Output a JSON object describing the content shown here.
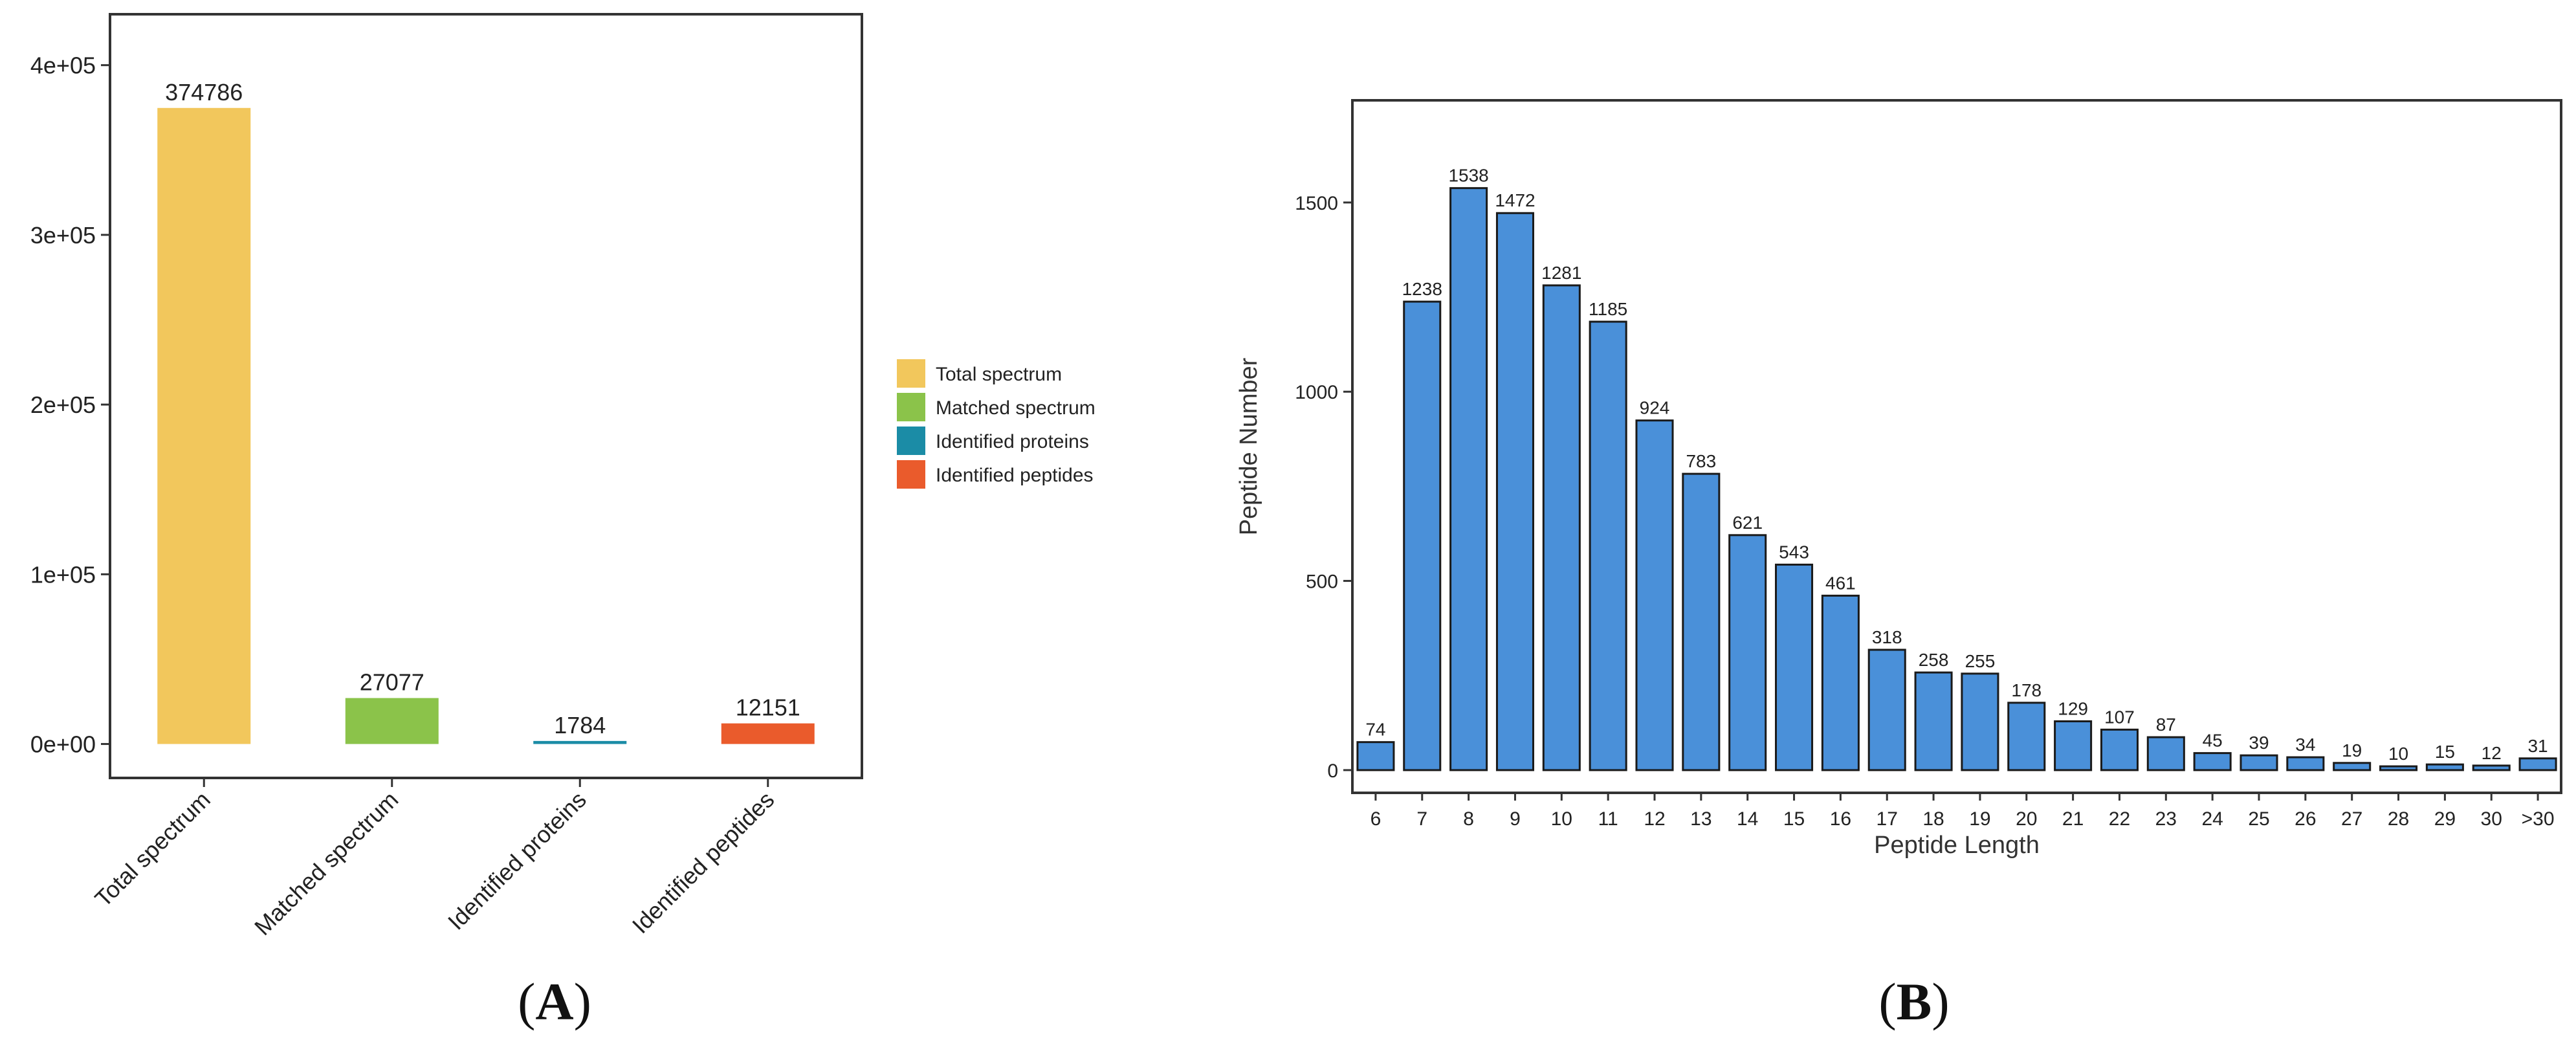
{
  "panels": {
    "a_label": "A",
    "b_label": "B"
  },
  "colors": {
    "total_spectrum": "#f2c75c",
    "matched_spectrum": "#8bc34a",
    "identified_proteins": "#1b8ca6",
    "identified_peptides": "#ea5b2c",
    "length_bar": "#4a90d9",
    "frame": "#333333",
    "text": "#222222"
  },
  "chart_data": [
    {
      "type": "bar",
      "panel": "A",
      "categories": [
        "Total spectrum",
        "Matched spectrum",
        "Identified proteins",
        "Identified peptides"
      ],
      "values": [
        374786,
        27077,
        1784,
        12151
      ],
      "data_labels": [
        "374786",
        "27077",
        "1784",
        "12151"
      ],
      "yticks": [
        0,
        100000,
        200000,
        300000,
        400000
      ],
      "ytick_labels": [
        "0e+00",
        "1e+05",
        "2e+05",
        "3e+05",
        "4e+05"
      ],
      "ylim": [
        -20000,
        430000
      ],
      "legend": {
        "position": "right",
        "entries": [
          "Total spectrum",
          "Matched spectrum",
          "Identified proteins",
          "Identified peptides"
        ]
      },
      "xlabel": "",
      "ylabel": ""
    },
    {
      "type": "bar",
      "panel": "B",
      "categories": [
        "6",
        "7",
        "8",
        "9",
        "10",
        "11",
        "12",
        "13",
        "14",
        "15",
        "16",
        "17",
        "18",
        "19",
        "20",
        "21",
        "22",
        "23",
        "24",
        "25",
        "26",
        "27",
        "28",
        "29",
        "30",
        ">30"
      ],
      "values": [
        74,
        1238,
        1538,
        1472,
        1281,
        1185,
        924,
        783,
        621,
        543,
        461,
        318,
        258,
        255,
        178,
        129,
        107,
        87,
        45,
        39,
        34,
        19,
        10,
        15,
        12,
        31
      ],
      "data_labels": [
        "74",
        "1238",
        "1538",
        "1472",
        "1281",
        "1185",
        "924",
        "783",
        "621",
        "543",
        "461",
        "318",
        "258",
        "255",
        "178",
        "129",
        "107",
        "87",
        "45",
        "39",
        "34",
        "19",
        "10",
        "15",
        "12",
        "31"
      ],
      "yticks": [
        0,
        500,
        1000,
        1500
      ],
      "ytick_labels": [
        "0",
        "500",
        "1000",
        "1500"
      ],
      "ylim": [
        -60,
        1770
      ],
      "xlabel": "Peptide Length",
      "ylabel": "Peptide Number"
    }
  ]
}
